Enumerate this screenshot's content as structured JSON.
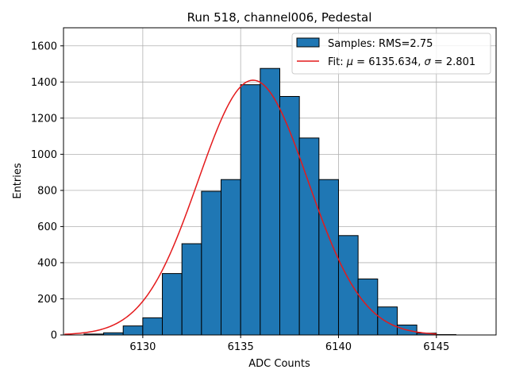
{
  "chart_data": {
    "type": "bar",
    "title": "Run 518, channel006, Pedestal",
    "xlabel": "ADC Counts",
    "ylabel": "Entries",
    "xlim": [
      6125.95,
      6148.05
    ],
    "ylim": [
      0,
      1700
    ],
    "xticks": [
      6130,
      6135,
      6140,
      6145
    ],
    "yticks": [
      0,
      200,
      400,
      600,
      800,
      1000,
      1200,
      1400,
      1600
    ],
    "grid": true,
    "legend_position": "top-right",
    "bins": {
      "edges": [
        6127,
        6128,
        6129,
        6130,
        6131,
        6132,
        6133,
        6134,
        6135,
        6136,
        6137,
        6138,
        6139,
        6140,
        6141,
        6142,
        6143,
        6144,
        6145,
        6146,
        6147
      ],
      "counts": [
        5,
        12,
        50,
        95,
        340,
        505,
        795,
        860,
        1385,
        1475,
        1320,
        1090,
        860,
        550,
        310,
        155,
        55,
        10,
        2,
        0
      ],
      "fill_color": "#1f77b4",
      "edge_color": "#000000"
    },
    "fit": {
      "mu": 6135.634,
      "sigma": 2.801,
      "amplitude": 1410,
      "x_range": [
        6126,
        6145
      ],
      "color": "#e41a1c"
    },
    "legend": [
      {
        "label": "Samples: RMS=2.75",
        "kind": "patch",
        "color": "#1f77b4"
      },
      {
        "label_prefix": "Fit: ",
        "mu_symbol": "μ",
        "mu_text": " = 6135.634, ",
        "sigma_symbol": "σ",
        "sigma_text": " = 2.801",
        "kind": "line",
        "color": "#e41a1c"
      }
    ]
  }
}
